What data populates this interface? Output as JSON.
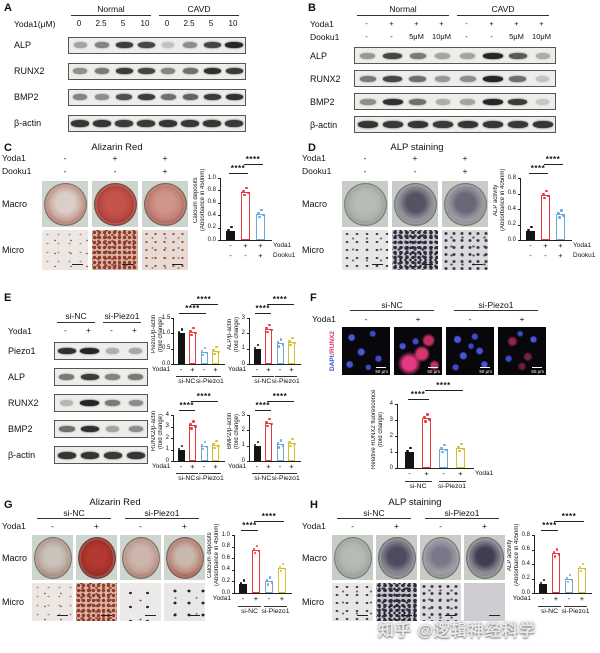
{
  "watermark": "知乎 @逻辑神经科学",
  "palette": {
    "black": "#141414",
    "red": "#e8393f",
    "blue": "#6ea6d9",
    "yellow": "#d2c22f"
  },
  "panelA": {
    "label": "A",
    "groups": [
      "Normal",
      "CAVD"
    ],
    "cond_rows": [
      {
        "label": "Yoda1(μM)",
        "values": [
          "0",
          "2.5",
          "5",
          "10",
          "0",
          "2.5",
          "5",
          "10"
        ]
      }
    ],
    "proteins": [
      {
        "name": "ALP",
        "bands": [
          0.35,
          0.5,
          0.85,
          0.8,
          0.2,
          0.45,
          0.8,
          0.95
        ]
      },
      {
        "name": "RUNX2",
        "bands": [
          0.45,
          0.55,
          0.85,
          0.8,
          0.5,
          0.6,
          0.9,
          0.85
        ]
      },
      {
        "name": "BMP2",
        "bands": [
          0.5,
          0.45,
          0.75,
          0.85,
          0.6,
          0.65,
          0.85,
          0.9
        ]
      },
      {
        "name": "β-actin",
        "bands": [
          0.88,
          0.88,
          0.85,
          0.86,
          0.88,
          0.87,
          0.88,
          0.86
        ]
      }
    ]
  },
  "panelB": {
    "label": "B",
    "groups": [
      "Normal",
      "CAVD"
    ],
    "cond_rows": [
      {
        "label": "Yoda1",
        "values": [
          "-",
          "+",
          "+",
          "+",
          "-",
          "+",
          "+",
          "+"
        ]
      },
      {
        "label": "Dooku1",
        "values": [
          "-",
          "-",
          "5μM",
          "10μM",
          "-",
          "-",
          "5μM",
          "10μM"
        ]
      }
    ],
    "proteins": [
      {
        "name": "ALP",
        "bands": [
          0.4,
          0.8,
          0.55,
          0.35,
          0.35,
          0.95,
          0.7,
          0.3
        ]
      },
      {
        "name": "RUNX2",
        "bands": [
          0.55,
          0.8,
          0.6,
          0.4,
          0.45,
          0.95,
          0.6,
          0.2
        ]
      },
      {
        "name": "BMP2",
        "bands": [
          0.45,
          0.9,
          0.6,
          0.3,
          0.35,
          0.95,
          0.85,
          0.18
        ]
      },
      {
        "name": "β-actin",
        "bands": [
          0.88,
          0.86,
          0.88,
          0.85,
          0.88,
          0.87,
          0.86,
          0.88
        ]
      }
    ]
  },
  "panelC": {
    "label": "C",
    "title": "Alizarin Red",
    "cond_rows": [
      {
        "label": "Yoda1",
        "values": [
          "-",
          "+",
          "+"
        ]
      },
      {
        "label": "Dooku1",
        "values": [
          "-",
          "-",
          "+"
        ]
      }
    ],
    "row_labels": [
      "Macro",
      "Micro"
    ],
    "wells": [
      [
        "#dacfc8",
        "#c9a196",
        "#b5766c"
      ],
      [
        "#c4544b",
        "#b7453d",
        "#9e352e"
      ],
      [
        "#cf948a",
        "#c27e72",
        "#ac5e53"
      ]
    ],
    "micros": [
      "micro-red-sparse",
      "micro-red-dense",
      "micro-red-mid"
    ]
  },
  "panelD": {
    "label": "D",
    "title": "ALP staining",
    "cond_rows": [
      {
        "label": "Yoda1",
        "values": [
          "-",
          "+",
          "+"
        ]
      },
      {
        "label": "Dooku1",
        "values": [
          "-",
          "-",
          "+"
        ]
      }
    ],
    "row_labels": [
      "Macro",
      "Micro"
    ],
    "wells": [
      [
        "#b8bcb6",
        "#aab0aa",
        "#9aa29b"
      ],
      [
        "#565264",
        "#9a97a0",
        "#8e948e"
      ],
      [
        "#6b6678",
        "#a09da6",
        "#909690"
      ]
    ],
    "micros": [
      "micro-dark-sparse",
      "micro-dark-dense",
      "micro-dark-mid"
    ]
  },
  "panelE": {
    "label": "E",
    "groups": [
      "si-NC",
      "si-Piezo1"
    ],
    "cond_rows": [
      {
        "label": "Yoda1",
        "values": [
          "-",
          "+",
          "-",
          "+"
        ]
      }
    ],
    "proteins": [
      {
        "name": "Piezo1",
        "bands": [
          0.9,
          0.95,
          0.3,
          0.33
        ]
      },
      {
        "name": "ALP",
        "bands": [
          0.55,
          0.85,
          0.5,
          0.55
        ]
      },
      {
        "name": "RUNX2",
        "bands": [
          0.25,
          0.95,
          0.55,
          0.45
        ]
      },
      {
        "name": "BMP2",
        "bands": [
          0.6,
          0.9,
          0.35,
          0.45
        ]
      },
      {
        "name": "β-actin",
        "bands": [
          0.88,
          0.88,
          0.86,
          0.87
        ]
      }
    ]
  },
  "panelF": {
    "label": "F",
    "groups": [
      "si-NC",
      "si-Piezo1"
    ],
    "merge_label_parts": [
      {
        "text": "DAPI",
        "color": "#3b4fd0"
      },
      {
        "text": "/",
        "color": "#777777"
      },
      {
        "text": "RUNX2",
        "color": "#e0356e"
      }
    ],
    "cond_rows": [
      {
        "label": "Yoda1",
        "values": [
          "-",
          "+",
          "-",
          "+"
        ]
      }
    ],
    "fluors": [
      "fluor-blue",
      "fluor-red",
      "fluor-blue2",
      "fluor-faint"
    ],
    "scale_bar": "50 μm"
  },
  "panelG": {
    "label": "G",
    "title": "Alizarin Red",
    "groups": [
      "si-NC",
      "si-Piezo1"
    ],
    "cond_rows": [
      {
        "label": "Yoda1",
        "values": [
          "-",
          "+",
          "-",
          "+"
        ]
      }
    ],
    "row_labels": [
      "Macro",
      "Micro"
    ],
    "wells": [
      [
        "#c9c3bc",
        "#bba49a",
        "#a98a80"
      ],
      [
        "#b23a30",
        "#a33028",
        "#8e2a24"
      ],
      [
        "#cdb6ac",
        "#c3a094",
        "#b07a6d"
      ],
      [
        "#c8b8ad",
        "#bd8b7d",
        "#a6554a"
      ]
    ],
    "micros": [
      "micro-red-sparse",
      "micro-red-dense",
      "micro-dot-sparse",
      "micro-dot-sparse2"
    ]
  },
  "panelH": {
    "label": "H",
    "title": "ALP staining",
    "groups": [
      "si-NC",
      "si-Piezo1"
    ],
    "cond_rows": [
      {
        "label": "Yoda1",
        "values": [
          "-",
          "+",
          "-",
          "+"
        ]
      }
    ],
    "row_labels": [
      "Macro",
      "Micro"
    ],
    "wells": [
      [
        "#b7bbb5",
        "#aab0a9",
        "#9aa29b"
      ],
      [
        "#4e4a60",
        "#8b8894",
        "#8d938d"
      ],
      [
        "#7b7789",
        "#a3a0a9",
        "#909690"
      ],
      [
        "#413e54",
        "#8f8c98",
        "#8e948e"
      ]
    ],
    "micros": [
      "micro-dark-sparse",
      "micro-dark-dense",
      "micro-dark-mid",
      "micro-dark-dense2"
    ]
  },
  "chart_data": [
    {
      "id": "cC",
      "type": "bar",
      "ylabel": [
        "Calcium deposits",
        "(Absorbance in 450nm)"
      ],
      "ymax": 1.0,
      "yticks": [
        "0.0",
        "0.2",
        "0.4",
        "0.6",
        "0.8",
        "1.0"
      ],
      "values": [
        0.15,
        0.78,
        0.42
      ],
      "colors": [
        "black",
        "red",
        "blue"
      ],
      "sig": [
        {
          "from": 0,
          "to": 1,
          "level": 0,
          "label": "****"
        },
        {
          "from": 1,
          "to": 2,
          "level": 1,
          "label": "****"
        }
      ],
      "xrows": [
        {
          "label": "Yoda1",
          "values": [
            "-",
            "+",
            "+"
          ]
        },
        {
          "label": "Dooku1",
          "values": [
            "-",
            "-",
            "+"
          ]
        }
      ],
      "xlabel_side": "right"
    },
    {
      "id": "cD",
      "type": "bar",
      "ylabel": [
        "ALP activity",
        "(Absorbance in 405nm)"
      ],
      "ymax": 0.8,
      "yticks": [
        "0.0",
        "0.2",
        "0.4",
        "0.6",
        "0.8"
      ],
      "values": [
        0.12,
        0.58,
        0.33
      ],
      "colors": [
        "black",
        "red",
        "blue"
      ],
      "sig": [
        {
          "from": 0,
          "to": 1,
          "level": 0,
          "label": "****"
        },
        {
          "from": 1,
          "to": 2,
          "level": 1,
          "label": "****"
        }
      ],
      "xrows": [
        {
          "label": "Yoda1",
          "values": [
            "-",
            "+",
            "+"
          ]
        },
        {
          "label": "Dooku1",
          "values": [
            "-",
            "-",
            "+"
          ]
        }
      ],
      "xlabel_side": "right"
    },
    {
      "id": "cE1",
      "type": "bar",
      "ylabel": [
        "Piezo1/β-actin",
        "(fold change)"
      ],
      "ymax": 1.5,
      "yticks": [
        "0.0",
        "0.5",
        "1.0",
        "1.5"
      ],
      "values": [
        1.0,
        1.05,
        0.4,
        0.43
      ],
      "colors": [
        "black",
        "red",
        "blue",
        "yellow"
      ],
      "sig": [
        {
          "from": 0,
          "to": 2,
          "level": 0,
          "label": "****"
        },
        {
          "from": 1,
          "to": 3,
          "level": 1,
          "label": "****"
        }
      ],
      "xrows": [
        {
          "label": "Yoda1",
          "values": [
            "-",
            "+",
            "-",
            "+"
          ]
        }
      ],
      "xlabel_side": "left",
      "group_labels": [
        {
          "label": "si-NC",
          "from": 0,
          "to": 1
        },
        {
          "label": "si-Piezo1",
          "from": 2,
          "to": 3
        }
      ]
    },
    {
      "id": "cE2",
      "type": "bar",
      "ylabel": [
        "ALP/β-actin",
        "(fold change)"
      ],
      "ymax": 3,
      "yticks": [
        "0",
        "1",
        "2",
        "3"
      ],
      "values": [
        1.0,
        2.3,
        1.35,
        1.45
      ],
      "colors": [
        "black",
        "red",
        "blue",
        "yellow"
      ],
      "sig": [
        {
          "from": 0,
          "to": 1,
          "level": 0,
          "label": "****"
        },
        {
          "from": 1,
          "to": 3,
          "level": 1,
          "label": "****"
        }
      ],
      "xrows": [
        {
          "label": "Yoda1",
          "values": [
            "-",
            "+",
            "-",
            "+"
          ]
        }
      ],
      "xlabel_side": "left",
      "group_labels": [
        {
          "label": "si-NC",
          "from": 0,
          "to": 1
        },
        {
          "label": "si-Piezo1",
          "from": 2,
          "to": 3
        }
      ]
    },
    {
      "id": "cE3",
      "type": "bar",
      "ylabel": [
        "RUNX2/β-actin",
        "(fold change)"
      ],
      "ymax": 4,
      "yticks": [
        "0",
        "1",
        "2",
        "3",
        "4"
      ],
      "values": [
        1.0,
        3.1,
        1.3,
        1.4
      ],
      "colors": [
        "black",
        "red",
        "blue",
        "yellow"
      ],
      "sig": [
        {
          "from": 0,
          "to": 1,
          "level": 0,
          "label": "****"
        },
        {
          "from": 1,
          "to": 3,
          "level": 1,
          "label": "****"
        }
      ],
      "xrows": [
        {
          "label": "Yoda1",
          "values": [
            "-",
            "+",
            "-",
            "+"
          ]
        }
      ],
      "xlabel_side": "left",
      "group_labels": [
        {
          "label": "si-NC",
          "from": 0,
          "to": 1
        },
        {
          "label": "si-Piezo1",
          "from": 2,
          "to": 3
        }
      ]
    },
    {
      "id": "cE4",
      "type": "bar",
      "ylabel": [
        "BMP2/β-actin",
        "(fold change)"
      ],
      "ymax": 3,
      "yticks": [
        "0",
        "1",
        "2",
        "3"
      ],
      "values": [
        1.0,
        2.5,
        1.1,
        1.2
      ],
      "colors": [
        "black",
        "red",
        "blue",
        "yellow"
      ],
      "sig": [
        {
          "from": 0,
          "to": 1,
          "level": 0,
          "label": "****"
        },
        {
          "from": 1,
          "to": 3,
          "level": 1,
          "label": "****"
        }
      ],
      "xrows": [
        {
          "label": "Yoda1",
          "values": [
            "-",
            "+",
            "-",
            "+"
          ]
        }
      ],
      "xlabel_side": "left",
      "group_labels": [
        {
          "label": "si-NC",
          "from": 0,
          "to": 1
        },
        {
          "label": "si-Piezo1",
          "from": 2,
          "to": 3
        }
      ]
    },
    {
      "id": "cF",
      "type": "bar",
      "ylabel": [
        "Relative RUNX2 fluorescence",
        "(fold change)"
      ],
      "ymax": 4,
      "yticks": [
        "0",
        "1",
        "2",
        "3",
        "4"
      ],
      "values": [
        1.0,
        3.1,
        1.2,
        1.25
      ],
      "colors": [
        "black",
        "red",
        "blue",
        "yellow"
      ],
      "sig": [
        {
          "from": 0,
          "to": 1,
          "level": 0,
          "label": "****"
        },
        {
          "from": 1,
          "to": 3,
          "level": 1,
          "label": "****"
        }
      ],
      "xrows": [
        {
          "label": "Yoda1",
          "values": [
            "-",
            "+",
            "-",
            "+"
          ]
        }
      ],
      "xlabel_side": "right",
      "group_labels": [
        {
          "label": "si-NC",
          "from": 0,
          "to": 1
        },
        {
          "label": "si-Piezo1",
          "from": 2,
          "to": 3
        }
      ]
    },
    {
      "id": "cG",
      "type": "bar",
      "ylabel": [
        "Calcium deposits",
        "(Absorbance in 450nm)"
      ],
      "ymax": 1.0,
      "yticks": [
        "0.0",
        "0.2",
        "0.4",
        "0.6",
        "0.8",
        "1.0"
      ],
      "values": [
        0.15,
        0.75,
        0.2,
        0.43
      ],
      "colors": [
        "black",
        "red",
        "blue",
        "yellow"
      ],
      "sig": [
        {
          "from": 0,
          "to": 1,
          "level": 0,
          "label": "****"
        },
        {
          "from": 1,
          "to": 3,
          "level": 1,
          "label": "****"
        }
      ],
      "xrows": [
        {
          "label": "Yoda1",
          "values": [
            "-",
            "+",
            "-",
            "+"
          ]
        }
      ],
      "xlabel_side": "left",
      "group_labels": [
        {
          "label": "si-NC",
          "from": 0,
          "to": 1
        },
        {
          "label": "si-Piezo1",
          "from": 2,
          "to": 3
        }
      ]
    },
    {
      "id": "cH",
      "type": "bar",
      "ylabel": [
        "ALP activity",
        "(Absorbance in 405nm)"
      ],
      "ymax": 0.8,
      "yticks": [
        "0.0",
        "0.2",
        "0.4",
        "0.6",
        "0.8"
      ],
      "values": [
        0.13,
        0.55,
        0.2,
        0.35
      ],
      "colors": [
        "black",
        "red",
        "blue",
        "yellow"
      ],
      "sig": [
        {
          "from": 0,
          "to": 1,
          "level": 0,
          "label": "****"
        },
        {
          "from": 1,
          "to": 3,
          "level": 1,
          "label": "****"
        }
      ],
      "xrows": [
        {
          "label": "Yoda1",
          "values": [
            "-",
            "+",
            "-",
            "+"
          ]
        }
      ],
      "xlabel_side": "left",
      "group_labels": [
        {
          "label": "si-NC",
          "from": 0,
          "to": 1
        },
        {
          "label": "si-Piezo1",
          "from": 2,
          "to": 3
        }
      ]
    }
  ]
}
